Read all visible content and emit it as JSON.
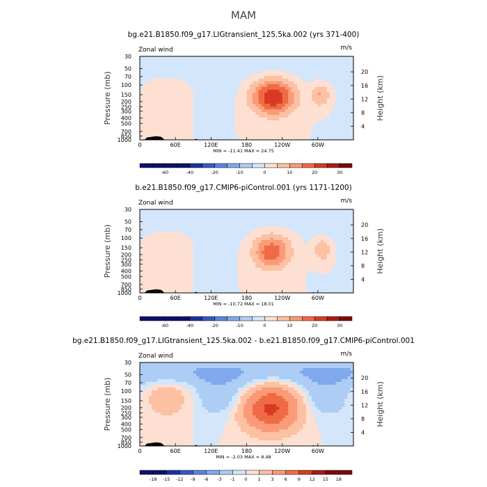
{
  "figure_title": "MAM",
  "colors": {
    "pos": [
      "#fde0d2",
      "#fcc0a2",
      "#fb9a77",
      "#f06a45",
      "#d63b22",
      "#a81d14",
      "#7a0b0b"
    ],
    "neg": [
      "#d3e6fb",
      "#adcdf5",
      "#7fa9ec",
      "#5a84e0",
      "#3558c7",
      "#1e309c",
      "#0b116a"
    ],
    "land": "#000000"
  },
  "chart_data": [
    {
      "type": "contour",
      "title": "bg.e21.B1850.f09_g17.LIGtransient_125.5ka.002 (yrs 371-400)",
      "variable_label": "Zonal wind",
      "units": "m/s",
      "xlabel": "",
      "ylabel": "Pressure (mb)",
      "ylabel_right": "Height (km)",
      "x_ticks": [
        "0",
        "60E",
        "120E",
        "180",
        "120W",
        "60W"
      ],
      "y_ticks": [
        "30",
        "50",
        "70",
        "100",
        "150",
        "200",
        "250",
        "300",
        "400",
        "500",
        "700",
        "850",
        "1000"
      ],
      "height_ticks": [
        "20",
        "16",
        "12",
        "8",
        "4"
      ],
      "min_label": "MIN = -11.41   MAX =  24.75",
      "colorbar_labels": [
        "-60",
        "-40",
        "-20",
        "-10",
        "0",
        "10",
        "20",
        "30"
      ],
      "levels": [
        -70,
        -60,
        -50,
        -40,
        -30,
        -20,
        -15,
        -10,
        -5,
        0,
        5,
        10,
        15,
        20,
        25,
        30
      ],
      "min": -11.41,
      "max": 24.75,
      "jets": [
        {
          "lon": 225,
          "p": 170,
          "sx": 26,
          "sy": 0.52,
          "amp": 23
        },
        {
          "lon": 305,
          "p": 150,
          "sx": 13,
          "sy": 0.38,
          "amp": 12
        }
      ]
    },
    {
      "type": "contour",
      "title": "b.e21.B1850.f09_g17.CMIP6-piControl.001 (yrs 1171-1200)",
      "variable_label": "Zonal wind",
      "units": "m/s",
      "xlabel": "",
      "ylabel": "Pressure (mb)",
      "ylabel_right": "Height (km)",
      "x_ticks": [
        "0",
        "60E",
        "120E",
        "180",
        "120W",
        "60W"
      ],
      "y_ticks": [
        "30",
        "50",
        "70",
        "100",
        "150",
        "200",
        "250",
        "300",
        "400",
        "500",
        "700",
        "850",
        "1000"
      ],
      "height_ticks": [
        "20",
        "16",
        "12",
        "8",
        "4"
      ],
      "min_label": "MIN = -10.72   MAX =  18.01",
      "colorbar_labels": [
        "-60",
        "-40",
        "-20",
        "-10",
        "0",
        "10",
        "20",
        "30"
      ],
      "levels": [
        -70,
        -60,
        -50,
        -40,
        -30,
        -20,
        -15,
        -10,
        -5,
        0,
        5,
        10,
        15,
        20,
        25,
        30
      ],
      "min": -10.72,
      "max": 18.01,
      "jets": [
        {
          "lon": 222,
          "p": 185,
          "sx": 22,
          "sy": 0.5,
          "amp": 17
        },
        {
          "lon": 308,
          "p": 160,
          "sx": 12,
          "sy": 0.38,
          "amp": 11
        }
      ]
    },
    {
      "type": "contour",
      "title": "bg.e21.B1850.f09_g17.LIGtransient_125.5ka.002 - b.e21.B1850.f09_g17.CMIP6-piControl.001",
      "variable_label": "Zonal wind",
      "units": "m/s",
      "xlabel": "",
      "ylabel": "Pressure (mb)",
      "ylabel_right": "Height (km)",
      "x_ticks": [
        "0",
        "60E",
        "120E",
        "180",
        "120W",
        "60W"
      ],
      "y_ticks": [
        "30",
        "50",
        "70",
        "100",
        "150",
        "200",
        "250",
        "300",
        "400",
        "500",
        "700",
        "850",
        "1000"
      ],
      "height_ticks": [
        "20",
        "16",
        "12",
        "8",
        "4"
      ],
      "min_label": "MIN =  -2.03   MAX =   8.48",
      "colorbar_labels": [
        "-18",
        "-15",
        "-12",
        "-9",
        "-6",
        "-3",
        "-1",
        "0",
        "1",
        "3",
        "6",
        "9",
        "12",
        "15",
        "18"
      ],
      "levels": [
        -18,
        -15,
        -12,
        -9,
        -6,
        -3,
        -1,
        0,
        1,
        3,
        6,
        9,
        12,
        15,
        18
      ],
      "min": -2.03,
      "max": 8.48,
      "jets": [
        {
          "lon": 220,
          "p": 230,
          "sx": 32,
          "sy": 0.6,
          "amp": 8.3
        }
      ]
    }
  ]
}
